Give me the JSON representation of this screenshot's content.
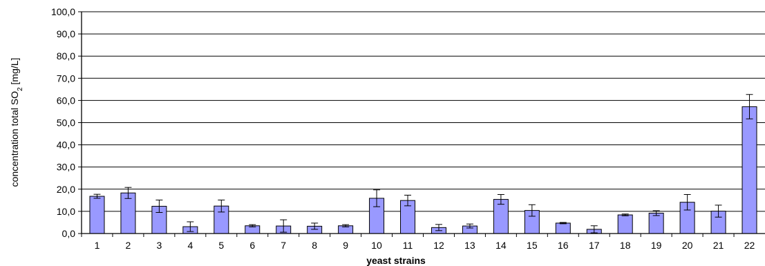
{
  "chart_data": {
    "type": "bar",
    "xlabel": "yeast strains",
    "ylabel": {
      "prefix": "concentration total SO",
      "subscript": "2",
      "suffix": " [mg/L]"
    },
    "ylim": [
      0,
      100
    ],
    "ytick_step": 10,
    "ytick_labels": [
      "0,0",
      "10,0",
      "20,0",
      "30,0",
      "40,0",
      "50,0",
      "60,0",
      "70,0",
      "80,0",
      "90,0",
      "100,0"
    ],
    "categories": [
      "1",
      "2",
      "3",
      "4",
      "5",
      "6",
      "7",
      "8",
      "9",
      "10",
      "11",
      "12",
      "13",
      "14",
      "15",
      "16",
      "17",
      "18",
      "19",
      "20",
      "21",
      "22"
    ],
    "values": [
      16.8,
      18.3,
      12.3,
      3.1,
      12.4,
      3.5,
      3.4,
      3.3,
      3.5,
      15.9,
      14.9,
      2.7,
      3.4,
      15.4,
      10.4,
      4.7,
      1.9,
      8.4,
      9.2,
      14.1,
      10.1,
      57.2
    ],
    "errors": [
      0.9,
      2.5,
      2.8,
      2.2,
      2.7,
      0.5,
      2.8,
      1.4,
      0.5,
      3.8,
      2.4,
      1.4,
      0.9,
      2.2,
      2.6,
      0.3,
      1.6,
      0.4,
      1.1,
      3.5,
      2.7,
      5.5
    ],
    "grid": true,
    "legend": "none",
    "colors": {
      "bar": "#9999ff",
      "bar_edge": "#000000",
      "grid": "#000000"
    }
  }
}
